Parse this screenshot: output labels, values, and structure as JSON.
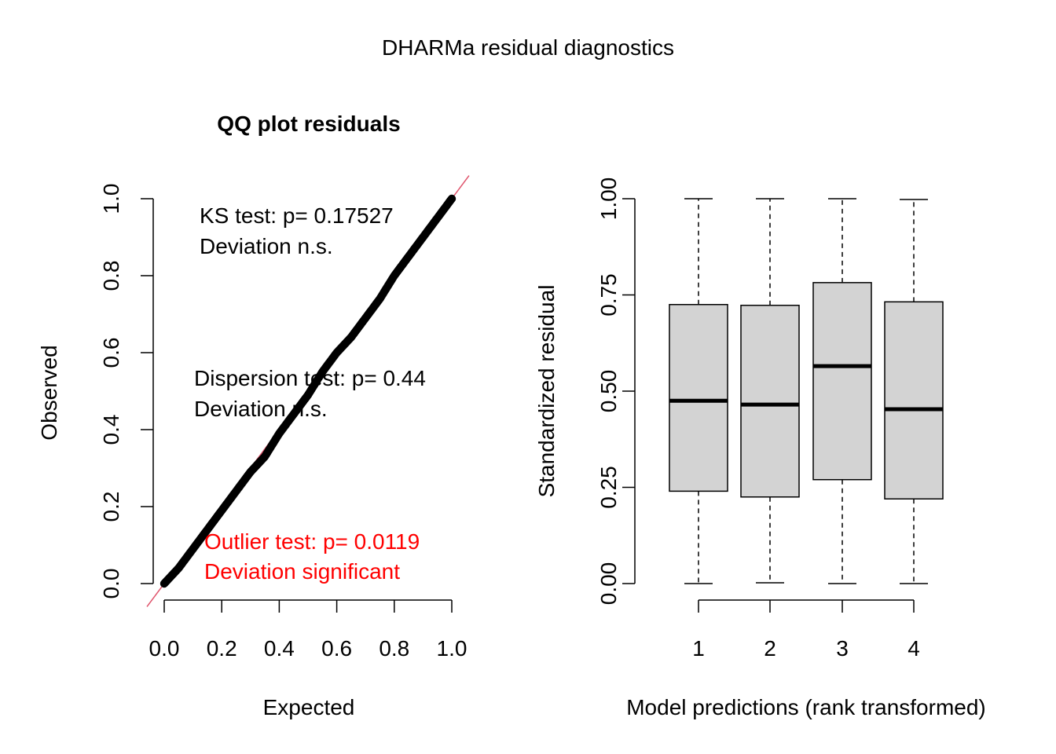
{
  "figure": {
    "title": "DHARMa residual diagnostics"
  },
  "colors": {
    "points": "#000000",
    "reference_line": "#df536b",
    "outlier_text": "#ff0000",
    "box_fill": "#d3d3d3",
    "axis": "#000000"
  },
  "chart_data": [
    {
      "type": "scatter",
      "title": "QQ plot residuals",
      "xlabel": "Expected",
      "ylabel": "Observed",
      "xlim": [
        0,
        1
      ],
      "ylim": [
        0,
        1
      ],
      "x_ticks": [
        "0.0",
        "0.2",
        "0.4",
        "0.6",
        "0.8",
        "1.0"
      ],
      "y_ticks": [
        "0.0",
        "0.2",
        "0.4",
        "0.6",
        "0.8",
        "1.0"
      ],
      "x_tick_values": [
        0,
        0.2,
        0.4,
        0.6,
        0.8,
        1.0
      ],
      "y_tick_values": [
        0,
        0.2,
        0.4,
        0.6,
        0.8,
        1.0
      ],
      "reference_line": {
        "from": [
          0,
          0
        ],
        "to": [
          1,
          1
        ]
      },
      "points": {
        "x": [
          0,
          0.05,
          0.1,
          0.15,
          0.2,
          0.25,
          0.3,
          0.35,
          0.4,
          0.45,
          0.5,
          0.55,
          0.6,
          0.65,
          0.7,
          0.75,
          0.8,
          0.85,
          0.9,
          0.95,
          1.0
        ],
        "y": [
          0,
          0.04,
          0.09,
          0.14,
          0.19,
          0.24,
          0.29,
          0.33,
          0.39,
          0.44,
          0.49,
          0.55,
          0.6,
          0.64,
          0.69,
          0.74,
          0.8,
          0.85,
          0.9,
          0.95,
          1.0
        ]
      },
      "annotations": [
        {
          "lines": [
            "KS test: p= 0.17527",
            "Deviation  n.s."
          ],
          "color": "black"
        },
        {
          "lines": [
            "Dispersion test: p= 0.44",
            "Deviation  n.s."
          ],
          "color": "black"
        },
        {
          "lines": [
            "Outlier test: p= 0.0119",
            "Deviation  significant"
          ],
          "color": "red"
        }
      ]
    },
    {
      "type": "boxplot",
      "xlabel": "Model predictions (rank transformed)",
      "ylabel": "Standardized residual",
      "ylim": [
        0,
        1
      ],
      "categories": [
        "1",
        "2",
        "3",
        "4"
      ],
      "y_ticks": [
        "0.00",
        "0.25",
        "0.50",
        "0.75",
        "1.00"
      ],
      "y_tick_values": [
        0,
        0.25,
        0.5,
        0.75,
        1.0
      ],
      "boxes": [
        {
          "category": "1",
          "min": 0.0,
          "q1": 0.24,
          "median": 0.475,
          "q3": 0.725,
          "max": 1.0
        },
        {
          "category": "2",
          "min": 0.002,
          "q1": 0.225,
          "median": 0.465,
          "q3": 0.723,
          "max": 1.0
        },
        {
          "category": "3",
          "min": 0.0,
          "q1": 0.27,
          "median": 0.565,
          "q3": 0.782,
          "max": 1.0
        },
        {
          "category": "4",
          "min": 0.0,
          "q1": 0.22,
          "median": 0.453,
          "q3": 0.732,
          "max": 0.998
        }
      ]
    }
  ]
}
